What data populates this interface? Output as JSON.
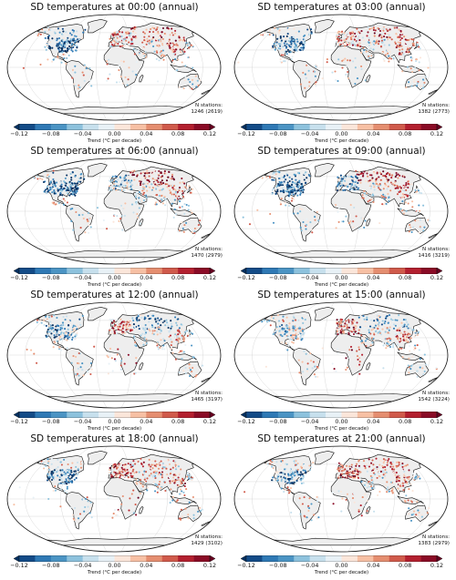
{
  "colorbar": {
    "ticks": [
      "−0.12",
      "−0.08",
      "−0.04",
      "0.00",
      "0.04",
      "0.08",
      "0.12"
    ],
    "label": "Trend (°C per decade)",
    "colors": [
      "#053061",
      "#134b87",
      "#2f79b5",
      "#4b94c4",
      "#8dc2dd",
      "#c7e0ed",
      "#e8f1f6",
      "#fbe6da",
      "#f7c0a4",
      "#e58e70",
      "#d05a4b",
      "#b3202f",
      "#8a0b26",
      "#67001f"
    ]
  },
  "panels": [
    {
      "title": "SD temperatures at 00:00 (annual)",
      "n_label": "N stations:",
      "n_value": "1246 (2619)"
    },
    {
      "title": "SD temperatures at 03:00 (annual)",
      "n_label": "N stations:",
      "n_value": "1382 (2773)"
    },
    {
      "title": "SD temperatures at 06:00 (annual)",
      "n_label": "N stations:",
      "n_value": "1470 (2979)"
    },
    {
      "title": "SD temperatures at 09:00 (annual)",
      "n_label": "N stations:",
      "n_value": "1416 (3219)"
    },
    {
      "title": "SD temperatures at 12:00 (annual)",
      "n_label": "N stations:",
      "n_value": "1465 (3197)"
    },
    {
      "title": "SD temperatures at 15:00 (annual)",
      "n_label": "N stations:",
      "n_value": "1542 (3224)"
    },
    {
      "title": "SD temperatures at 18:00 (annual)",
      "n_label": "N stations:",
      "n_value": "1429 (3102)"
    },
    {
      "title": "SD temperatures at 21:00 (annual)",
      "n_label": "N stations:",
      "n_value": "1383 (2979)"
    }
  ]
}
